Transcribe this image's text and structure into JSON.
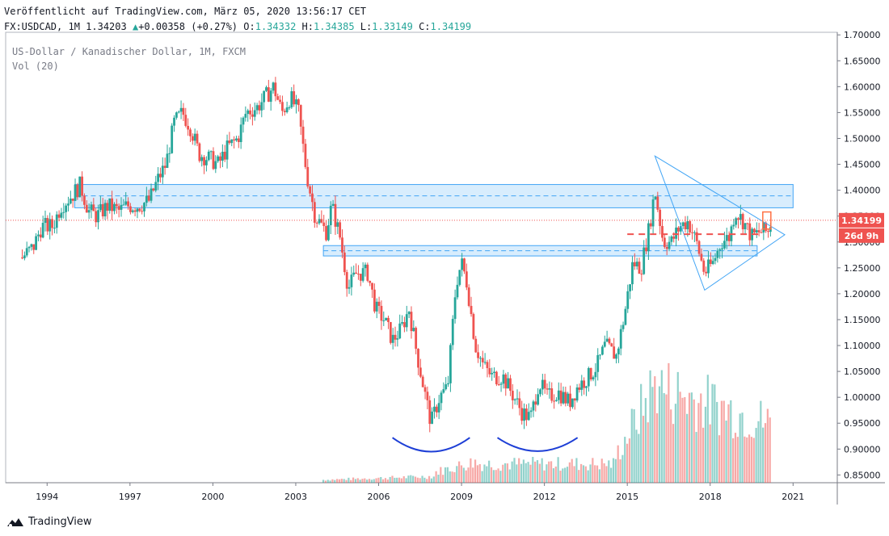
{
  "header": {
    "published": "Veröffentlicht auf TradingView.com, März 05, 2020 13:56:17 CET",
    "symbol": "FX:USDCAD, 1M",
    "last": "1.34203",
    "change_arrow": "▲",
    "change": "+0.00358 (+0.27%)",
    "o_label": "O:",
    "o": "1.34332",
    "h_label": "H:",
    "h": "1.34385",
    "l_label": "L:",
    "l": "1.33149",
    "c_label": "C:",
    "c": "1.34199"
  },
  "legend": {
    "title": "US-Dollar / Kanadischer Dollar, 1M, FXCM",
    "volume": "Vol (20)"
  },
  "footer": {
    "brand": "TradingView",
    "logo_icon": "tradingview-logo-icon"
  },
  "price_badge": {
    "value": "1.34199",
    "countdown": "26d 9h",
    "color": "#ef5350",
    "countdown_color": "#ef5350"
  },
  "colors": {
    "up": "#26a69a",
    "down": "#ef5350",
    "zone": "#90caf9",
    "trend": "#42a5f5",
    "arc": "#1e3fd6"
  },
  "chart_data": {
    "type": "candlestick",
    "title": "US-Dollar / Kanadischer Dollar, 1M, FXCM",
    "x_ticks": [
      "1994",
      "1997",
      "2000",
      "2003",
      "2006",
      "2009",
      "2012",
      "2015",
      "2018",
      "2021"
    ],
    "y_ticks": [
      "1.70000",
      "1.65000",
      "1.60000",
      "1.55000",
      "1.50000",
      "1.45000",
      "1.40000",
      "1.35000",
      "1.30000",
      "1.25000",
      "1.20000",
      "1.15000",
      "1.10000",
      "1.05000",
      "1.00000",
      "0.95000",
      "0.90000",
      "0.85000"
    ],
    "ylim": [
      0.835,
      1.705
    ],
    "xlim": [
      1992.5,
      2022.6
    ],
    "path_points": [
      [
        1993.1,
        1.27
      ],
      [
        1993.5,
        1.29
      ],
      [
        1993.8,
        1.33
      ],
      [
        1994.2,
        1.33
      ],
      [
        1994.5,
        1.37
      ],
      [
        1994.9,
        1.39
      ],
      [
        1995.2,
        1.41
      ],
      [
        1995.5,
        1.36
      ],
      [
        1995.8,
        1.35
      ],
      [
        1996.2,
        1.37
      ],
      [
        1996.6,
        1.36
      ],
      [
        1996.9,
        1.37
      ],
      [
        1997.3,
        1.37
      ],
      [
        1997.7,
        1.38
      ],
      [
        1998.0,
        1.42
      ],
      [
        1998.3,
        1.45
      ],
      [
        1998.6,
        1.53
      ],
      [
        1998.9,
        1.55
      ],
      [
        1999.2,
        1.52
      ],
      [
        1999.5,
        1.47
      ],
      [
        1999.9,
        1.46
      ],
      [
        2000.2,
        1.45
      ],
      [
        2000.5,
        1.48
      ],
      [
        2000.9,
        1.5
      ],
      [
        2001.2,
        1.55
      ],
      [
        2001.6,
        1.56
      ],
      [
        2001.9,
        1.58
      ],
      [
        2002.2,
        1.6
      ],
      [
        2002.5,
        1.55
      ],
      [
        2002.8,
        1.58
      ],
      [
        2003.1,
        1.55
      ],
      [
        2003.4,
        1.43
      ],
      [
        2003.7,
        1.35
      ],
      [
        2004.1,
        1.32
      ],
      [
        2004.3,
        1.37
      ],
      [
        2004.6,
        1.31
      ],
      [
        2004.9,
        1.21
      ],
      [
        2005.2,
        1.24
      ],
      [
        2005.6,
        1.24
      ],
      [
        2005.9,
        1.17
      ],
      [
        2006.2,
        1.15
      ],
      [
        2006.5,
        1.11
      ],
      [
        2006.8,
        1.13
      ],
      [
        2007.1,
        1.17
      ],
      [
        2007.4,
        1.08
      ],
      [
        2007.7,
        1.0
      ],
      [
        2007.9,
        0.95
      ],
      [
        2008.2,
        1.0
      ],
      [
        2008.5,
        1.02
      ],
      [
        2008.8,
        1.22
      ],
      [
        2009.0,
        1.26
      ],
      [
        2009.2,
        1.22
      ],
      [
        2009.5,
        1.1
      ],
      [
        2009.8,
        1.06
      ],
      [
        2010.1,
        1.04
      ],
      [
        2010.5,
        1.04
      ],
      [
        2010.8,
        1.01
      ],
      [
        2011.2,
        0.97
      ],
      [
        2011.5,
        0.96
      ],
      [
        2011.8,
        1.03
      ],
      [
        2012.1,
        1.0
      ],
      [
        2012.5,
        1.01
      ],
      [
        2012.9,
        0.99
      ],
      [
        2013.2,
        1.02
      ],
      [
        2013.6,
        1.04
      ],
      [
        2013.9,
        1.06
      ],
      [
        2014.2,
        1.1
      ],
      [
        2014.6,
        1.08
      ],
      [
        2014.9,
        1.16
      ],
      [
        2015.2,
        1.26
      ],
      [
        2015.5,
        1.25
      ],
      [
        2015.8,
        1.33
      ],
      [
        2016.0,
        1.4
      ],
      [
        2016.3,
        1.3
      ],
      [
        2016.6,
        1.3
      ],
      [
        2016.9,
        1.33
      ],
      [
        2017.2,
        1.34
      ],
      [
        2017.5,
        1.3
      ],
      [
        2017.8,
        1.24
      ],
      [
        2018.1,
        1.26
      ],
      [
        2018.4,
        1.3
      ],
      [
        2018.7,
        1.31
      ],
      [
        2018.9,
        1.36
      ],
      [
        2019.2,
        1.34
      ],
      [
        2019.5,
        1.31
      ],
      [
        2019.8,
        1.32
      ],
      [
        2020.1,
        1.32
      ],
      [
        2020.2,
        1.34
      ]
    ],
    "zones": [
      {
        "from": 1995.0,
        "to": 2021.0,
        "low": 1.366,
        "high": 1.411,
        "mid": 1.389
      },
      {
        "from": 2004.0,
        "to": 2019.7,
        "low": 1.273,
        "high": 1.293,
        "mid": 1.283
      }
    ],
    "triangle": [
      [
        2016.0,
        1.466
      ],
      [
        2017.8,
        1.207
      ],
      [
        2020.7,
        1.314
      ]
    ],
    "current_price": 1.34199,
    "dashed_level": {
      "from": 2015.0,
      "to": 2019.8,
      "value": 1.315
    },
    "arcs": [
      [
        2006.5,
        2009.3,
        0.922,
        0.895
      ],
      [
        2010.3,
        2013.2,
        0.922,
        0.896
      ]
    ],
    "volume_start": 2004.0,
    "volume": "monthly bars, small until 2008, growing after 2015, peak near 2016"
  }
}
